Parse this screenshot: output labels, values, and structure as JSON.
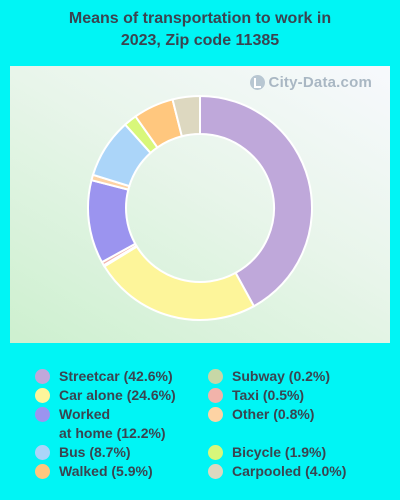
{
  "title_line1": "Means of transportation to work in",
  "title_line2": "2023, Zip code 11385",
  "watermark": "City-Data.com",
  "chart_data": {
    "type": "pie",
    "donut": true,
    "title": "Means of transportation to work in 2023, Zip code 11385",
    "slices": [
      {
        "label": "Streetcar (42.6%)",
        "value": 42.6,
        "color": "#bfa8da"
      },
      {
        "label": "Car alone (24.6%)",
        "value": 24.6,
        "color": "#fdf59a"
      },
      {
        "label": "Subway (0.2%)",
        "value": 0.2,
        "color": "#c7d7a6"
      },
      {
        "label": "Taxi (0.5%)",
        "value": 0.5,
        "color": "#f1b3aa"
      },
      {
        "label": "Worked at home (12.2%)",
        "value": 12.2,
        "color": "#9b94ef"
      },
      {
        "label": "Other (0.8%)",
        "value": 0.8,
        "color": "#fdd3a4"
      },
      {
        "label": "Bus (8.7%)",
        "value": 8.7,
        "color": "#abd5f9"
      },
      {
        "label": "Bicycle (1.9%)",
        "value": 1.9,
        "color": "#d8f77a"
      },
      {
        "label": "Walked (5.9%)",
        "value": 5.9,
        "color": "#ffc77e"
      },
      {
        "label": "Carpooled (4.0%)",
        "value": 4.0,
        "color": "#ddd8c0"
      }
    ],
    "legend": {
      "left_column": [
        {
          "label": "Streetcar (42.6%)",
          "color": "#bfa8da"
        },
        {
          "label": "Car alone (24.6%)",
          "color": "#fdf59a"
        },
        {
          "label_line1": "Worked",
          "label_line2": "at home (12.2%)",
          "color": "#9b94ef"
        },
        {
          "label": "Bus (8.7%)",
          "color": "#abd5f9"
        },
        {
          "label": "Walked (5.9%)",
          "color": "#ffc77e"
        }
      ],
      "right_column": [
        {
          "label": "Subway (0.2%)",
          "color": "#c7d7a6"
        },
        {
          "label": "Taxi (0.5%)",
          "color": "#f1b3aa"
        },
        {
          "label": "Other (0.8%)",
          "color": "#fdd3a4"
        },
        {
          "label": "Bicycle (1.9%)",
          "color": "#d8f77a"
        },
        {
          "label": "Carpooled (4.0%)",
          "color": "#ddd8c0"
        }
      ]
    }
  }
}
